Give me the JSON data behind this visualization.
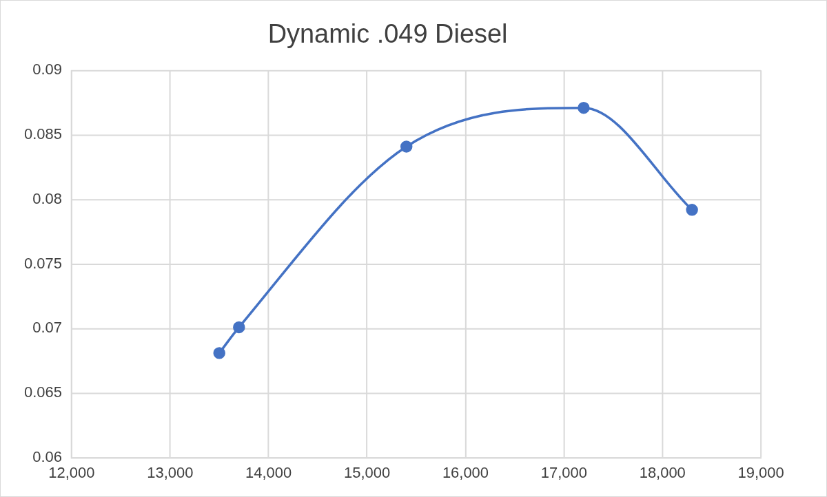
{
  "chart_data": {
    "type": "line",
    "title": "Dynamic .049 Diesel",
    "x": [
      13500,
      13700,
      15400,
      17200,
      18300
    ],
    "series": [
      {
        "color": "#4472c4",
        "values": [
          0.0681,
          0.0701,
          0.0841,
          0.0871,
          0.0792
        ]
      }
    ],
    "xlim": [
      12000,
      19000
    ],
    "xticks": [
      {
        "value": 12000,
        "label": "12,000"
      },
      {
        "value": 13000,
        "label": "13,000"
      },
      {
        "value": 14000,
        "label": "14,000"
      },
      {
        "value": 15000,
        "label": "15,000"
      },
      {
        "value": 16000,
        "label": "16,000"
      },
      {
        "value": 17000,
        "label": "17,000"
      },
      {
        "value": 18000,
        "label": "18,000"
      },
      {
        "value": 19000,
        "label": "19,000"
      }
    ],
    "ylim": [
      0.06,
      0.09
    ],
    "yticks": [
      0.06,
      0.065,
      0.07,
      0.075,
      0.08,
      0.085,
      0.09
    ],
    "grid": true,
    "legend": false,
    "marker": "circle",
    "line_style": "solid"
  }
}
